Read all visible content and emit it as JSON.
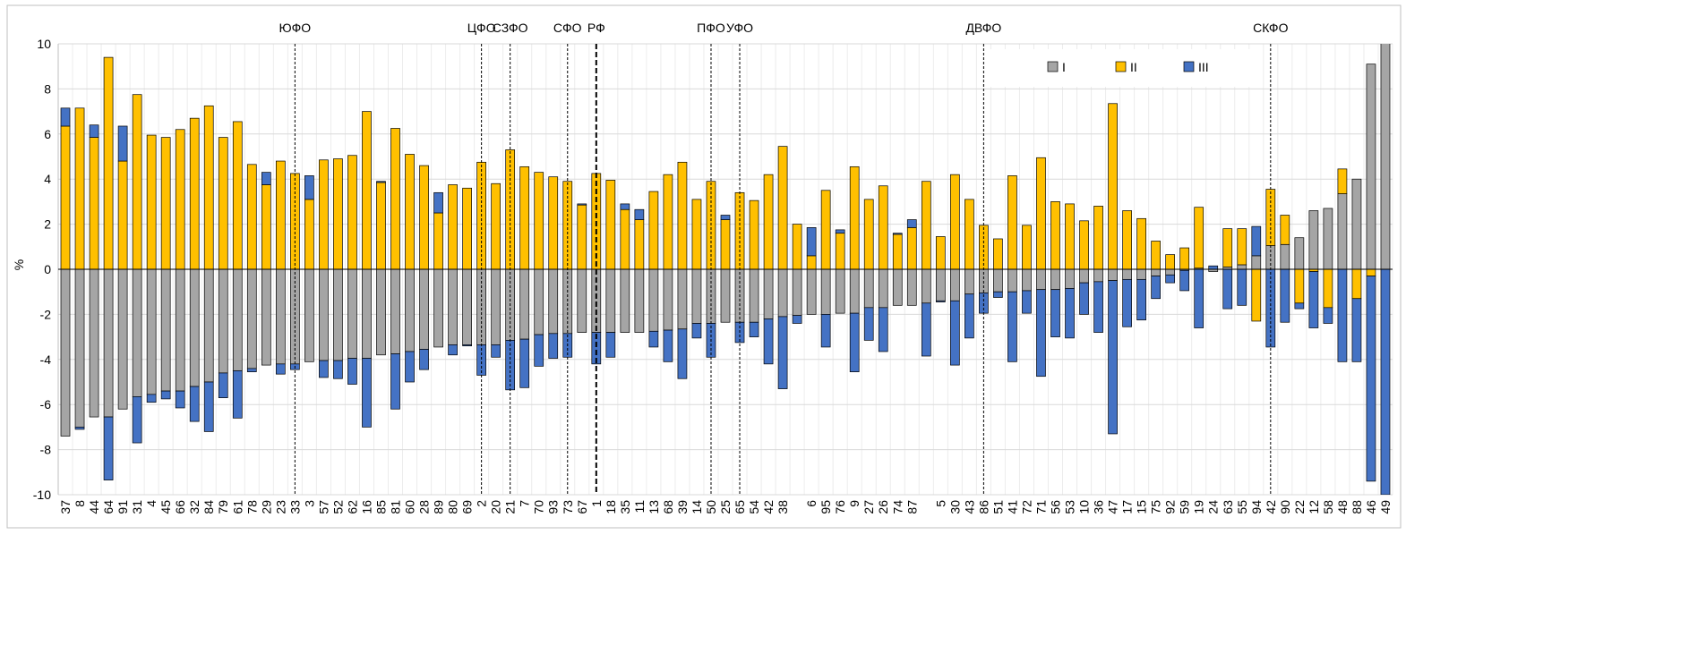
{
  "chart_data": {
    "type": "stacked_bar",
    "y_label": "%",
    "ylim": [
      -10,
      10
    ],
    "yticks": [
      -10,
      -8,
      -6,
      -4,
      -2,
      0,
      2,
      4,
      6,
      8,
      10
    ],
    "grid": true,
    "legend": "top-right",
    "categories": [
      "37",
      "8",
      "44",
      "64",
      "91",
      "31",
      "4",
      "45",
      "66",
      "32",
      "84",
      "79",
      "61",
      "78",
      "29",
      "23",
      "33",
      "3",
      "57",
      "52",
      "62",
      "16",
      "85",
      "81",
      "60",
      "28",
      "89",
      "80",
      "69",
      "2",
      "20",
      "21",
      "7",
      "70",
      "93",
      "73",
      "67",
      "1",
      "18",
      "35",
      "11",
      "13",
      "68",
      "39",
      "14",
      "50",
      "25",
      "65",
      "54",
      "42",
      "38",
      null,
      "6",
      "95",
      "76",
      "9",
      "27",
      "26",
      "74",
      "87",
      null,
      "5",
      "30",
      "43",
      "86",
      "51",
      "41",
      "72",
      "71",
      "56",
      "53",
      "10",
      "36",
      "47",
      "17",
      "15",
      "75",
      "92",
      "59",
      "19",
      "24",
      "63",
      "55",
      "94",
      "42",
      "90",
      "22",
      "12",
      "58",
      "48",
      "88",
      "46",
      "49"
    ],
    "series": [
      {
        "name": "I",
        "color": "#a5a5a5",
        "values": [
          -7.4,
          -7.0,
          -6.55,
          -6.55,
          -6.2,
          -5.65,
          -5.55,
          -5.4,
          -5.4,
          -5.2,
          -5.0,
          -4.6,
          -4.5,
          -4.4,
          -4.25,
          -4.2,
          -4.2,
          -4.1,
          -4.05,
          -4.05,
          -3.95,
          -3.95,
          -3.8,
          -3.75,
          -3.65,
          -3.55,
          -3.45,
          -3.35,
          -3.35,
          -3.35,
          -3.35,
          -3.15,
          -3.1,
          -2.9,
          -2.85,
          -2.85,
          -2.8,
          -2.8,
          -2.8,
          -2.8,
          -2.8,
          -2.75,
          -2.7,
          -2.65,
          -2.4,
          -2.4,
          -2.35,
          -2.35,
          -2.35,
          -2.2,
          -2.1,
          -2.05,
          -2.0,
          -2.0,
          -1.95,
          -1.95,
          -1.7,
          -1.7,
          -1.6,
          -1.6,
          -1.5,
          -1.4,
          -1.4,
          -1.1,
          -1.05,
          -1.0,
          -1.0,
          -0.95,
          -0.9,
          -0.9,
          -0.85,
          -0.6,
          -0.55,
          -0.5,
          -0.45,
          -0.45,
          -0.3,
          -0.25,
          -0.05,
          0.05,
          -0.1,
          0.1,
          0.2,
          0.6,
          1.05,
          1.1,
          1.4,
          2.6,
          2.7,
          3.35,
          4.0,
          9.1,
          10.8
        ]
      },
      {
        "name": "II",
        "color": "#ffc000",
        "values": [
          6.35,
          7.15,
          5.85,
          9.4,
          4.8,
          7.75,
          5.95,
          5.85,
          6.2,
          6.7,
          7.25,
          5.85,
          6.55,
          4.65,
          3.75,
          4.8,
          4.25,
          3.1,
          4.85,
          4.9,
          5.05,
          7.0,
          3.85,
          6.25,
          5.1,
          4.6,
          2.5,
          3.75,
          3.6,
          4.75,
          3.8,
          5.3,
          4.55,
          4.3,
          4.1,
          3.9,
          2.85,
          4.25,
          3.95,
          2.65,
          2.2,
          3.45,
          4.2,
          4.75,
          3.1,
          3.9,
          2.2,
          3.4,
          3.05,
          4.2,
          5.45,
          2.0,
          0.6,
          3.5,
          1.6,
          4.55,
          3.1,
          3.7,
          1.55,
          1.85,
          3.9,
          1.45,
          4.2,
          3.1,
          1.95,
          1.35,
          4.15,
          1.95,
          4.95,
          3.0,
          2.9,
          2.15,
          2.8,
          7.35,
          2.6,
          2.25,
          1.25,
          0.65,
          0.95,
          2.7,
          0,
          1.7,
          1.6,
          -2.3,
          2.5,
          1.3,
          -1.5,
          -0.1,
          -1.7,
          1.1,
          -1.3,
          -0.3,
          0
        ]
      },
      {
        "name": "III",
        "color": "#4472c4",
        "values": [
          0.8,
          -0.1,
          0.55,
          -2.8,
          1.55,
          -2.05,
          -0.35,
          -0.35,
          -0.75,
          -1.55,
          -2.2,
          -1.1,
          -2.1,
          -0.15,
          0.55,
          -0.45,
          -0.25,
          1.05,
          -0.75,
          -0.8,
          -1.15,
          -3.05,
          0.05,
          -2.45,
          -1.35,
          -0.9,
          0.9,
          -0.45,
          -0.05,
          -1.35,
          -0.55,
          -2.2,
          -2.15,
          -1.4,
          -1.1,
          -1.05,
          0.05,
          -1.4,
          -1.1,
          0.25,
          0.45,
          -0.7,
          -1.4,
          -2.2,
          -0.65,
          -1.5,
          0.2,
          -0.9,
          -0.65,
          -2.0,
          -3.2,
          -0.35,
          1.25,
          -1.45,
          0.15,
          -2.6,
          -1.45,
          -1.95,
          0.05,
          0.35,
          -2.35,
          -0.05,
          -2.85,
          -1.95,
          -0.9,
          -0.25,
          -3.1,
          -1.0,
          -3.85,
          -2.1,
          -2.2,
          -1.4,
          -2.25,
          -6.8,
          -2.1,
          -1.8,
          -1.0,
          -0.35,
          -0.9,
          -2.6,
          0.15,
          -1.75,
          -1.6,
          1.3,
          -3.45,
          -2.35,
          -0.25,
          -2.5,
          -0.7,
          -4.1,
          -2.8,
          -9.1,
          -10
        ]
      }
    ],
    "regions": [
      {
        "label": "ЮФО",
        "category_index": 16
      },
      {
        "label": "ЦФО",
        "category_index": 29
      },
      {
        "label": "СЗФО",
        "category_index": 31
      },
      {
        "label": "СФО",
        "category_index": 35
      },
      {
        "label": "РФ",
        "category_index": 37,
        "bold": true
      },
      {
        "label": "ПФО",
        "category_index": 45
      },
      {
        "label": "УФО",
        "category_index": 47
      },
      {
        "label": "ДВФО",
        "category_index": 64
      },
      {
        "label": "СКФО",
        "category_index": 84
      }
    ]
  }
}
